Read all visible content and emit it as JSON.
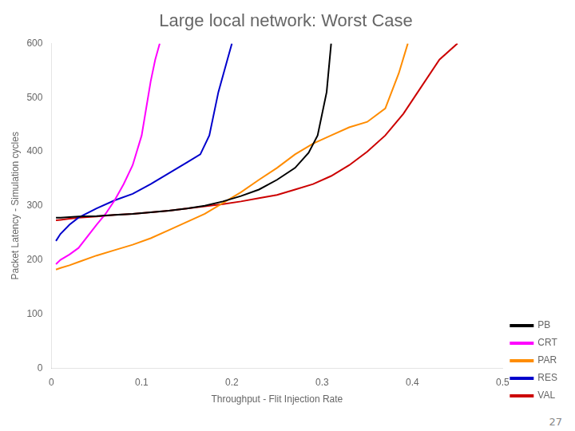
{
  "chart_data": {
    "type": "line",
    "title": "Large local network: Worst Case",
    "xlabel": "Throughput - Flit Injection Rate",
    "ylabel": "Packet Latency - Simulation cycles",
    "xlim": [
      0,
      0.5
    ],
    "ylim": [
      0,
      600
    ],
    "xticks": [
      0,
      0.1,
      0.2,
      0.3,
      0.4,
      0.5
    ],
    "yticks": [
      0,
      100,
      200,
      300,
      400,
      500,
      600
    ],
    "grid": false,
    "legend": "lower right",
    "annotation": "27",
    "series": [
      {
        "name": "PB",
        "color": "#000000",
        "x": [
          0.005,
          0.01,
          0.02,
          0.03,
          0.05,
          0.07,
          0.09,
          0.11,
          0.13,
          0.15,
          0.17,
          0.19,
          0.21,
          0.23,
          0.25,
          0.27,
          0.285,
          0.295,
          0.305,
          0.31
        ],
        "values": [
          278,
          278,
          279,
          280,
          281,
          283,
          285,
          288,
          291,
          295,
          300,
          308,
          318,
          330,
          348,
          370,
          398,
          430,
          510,
          600
        ]
      },
      {
        "name": "CRT",
        "color": "#ff00ff",
        "x": [
          0.005,
          0.01,
          0.02,
          0.03,
          0.05,
          0.06,
          0.07,
          0.08,
          0.09,
          0.1,
          0.105,
          0.11,
          0.115,
          0.12
        ],
        "values": [
          192,
          200,
          210,
          222,
          265,
          285,
          310,
          340,
          375,
          430,
          480,
          530,
          570,
          600
        ]
      },
      {
        "name": "PAR",
        "color": "#ff8c00",
        "x": [
          0.005,
          0.01,
          0.02,
          0.03,
          0.05,
          0.07,
          0.09,
          0.11,
          0.13,
          0.15,
          0.17,
          0.19,
          0.21,
          0.23,
          0.25,
          0.27,
          0.29,
          0.31,
          0.33,
          0.35,
          0.37,
          0.385,
          0.395
        ],
        "values": [
          182,
          185,
          190,
          196,
          208,
          218,
          228,
          240,
          255,
          270,
          285,
          305,
          325,
          348,
          370,
          395,
          415,
          430,
          445,
          455,
          480,
          545,
          600
        ]
      },
      {
        "name": "RES",
        "color": "#0000cc",
        "x": [
          0.005,
          0.01,
          0.02,
          0.03,
          0.05,
          0.07,
          0.09,
          0.11,
          0.13,
          0.15,
          0.165,
          0.175,
          0.185,
          0.195,
          0.2
        ],
        "values": [
          235,
          248,
          265,
          278,
          295,
          310,
          322,
          340,
          360,
          380,
          395,
          430,
          510,
          570,
          600
        ]
      },
      {
        "name": "VAL",
        "color": "#cc0000",
        "x": [
          0.005,
          0.01,
          0.02,
          0.03,
          0.05,
          0.07,
          0.09,
          0.11,
          0.13,
          0.15,
          0.17,
          0.19,
          0.21,
          0.23,
          0.25,
          0.27,
          0.29,
          0.31,
          0.33,
          0.35,
          0.37,
          0.39,
          0.41,
          0.43,
          0.45
        ],
        "values": [
          273,
          274,
          276,
          278,
          280,
          283,
          285,
          288,
          291,
          295,
          299,
          303,
          308,
          314,
          320,
          330,
          340,
          355,
          375,
          400,
          430,
          470,
          520,
          570,
          600
        ]
      }
    ]
  }
}
